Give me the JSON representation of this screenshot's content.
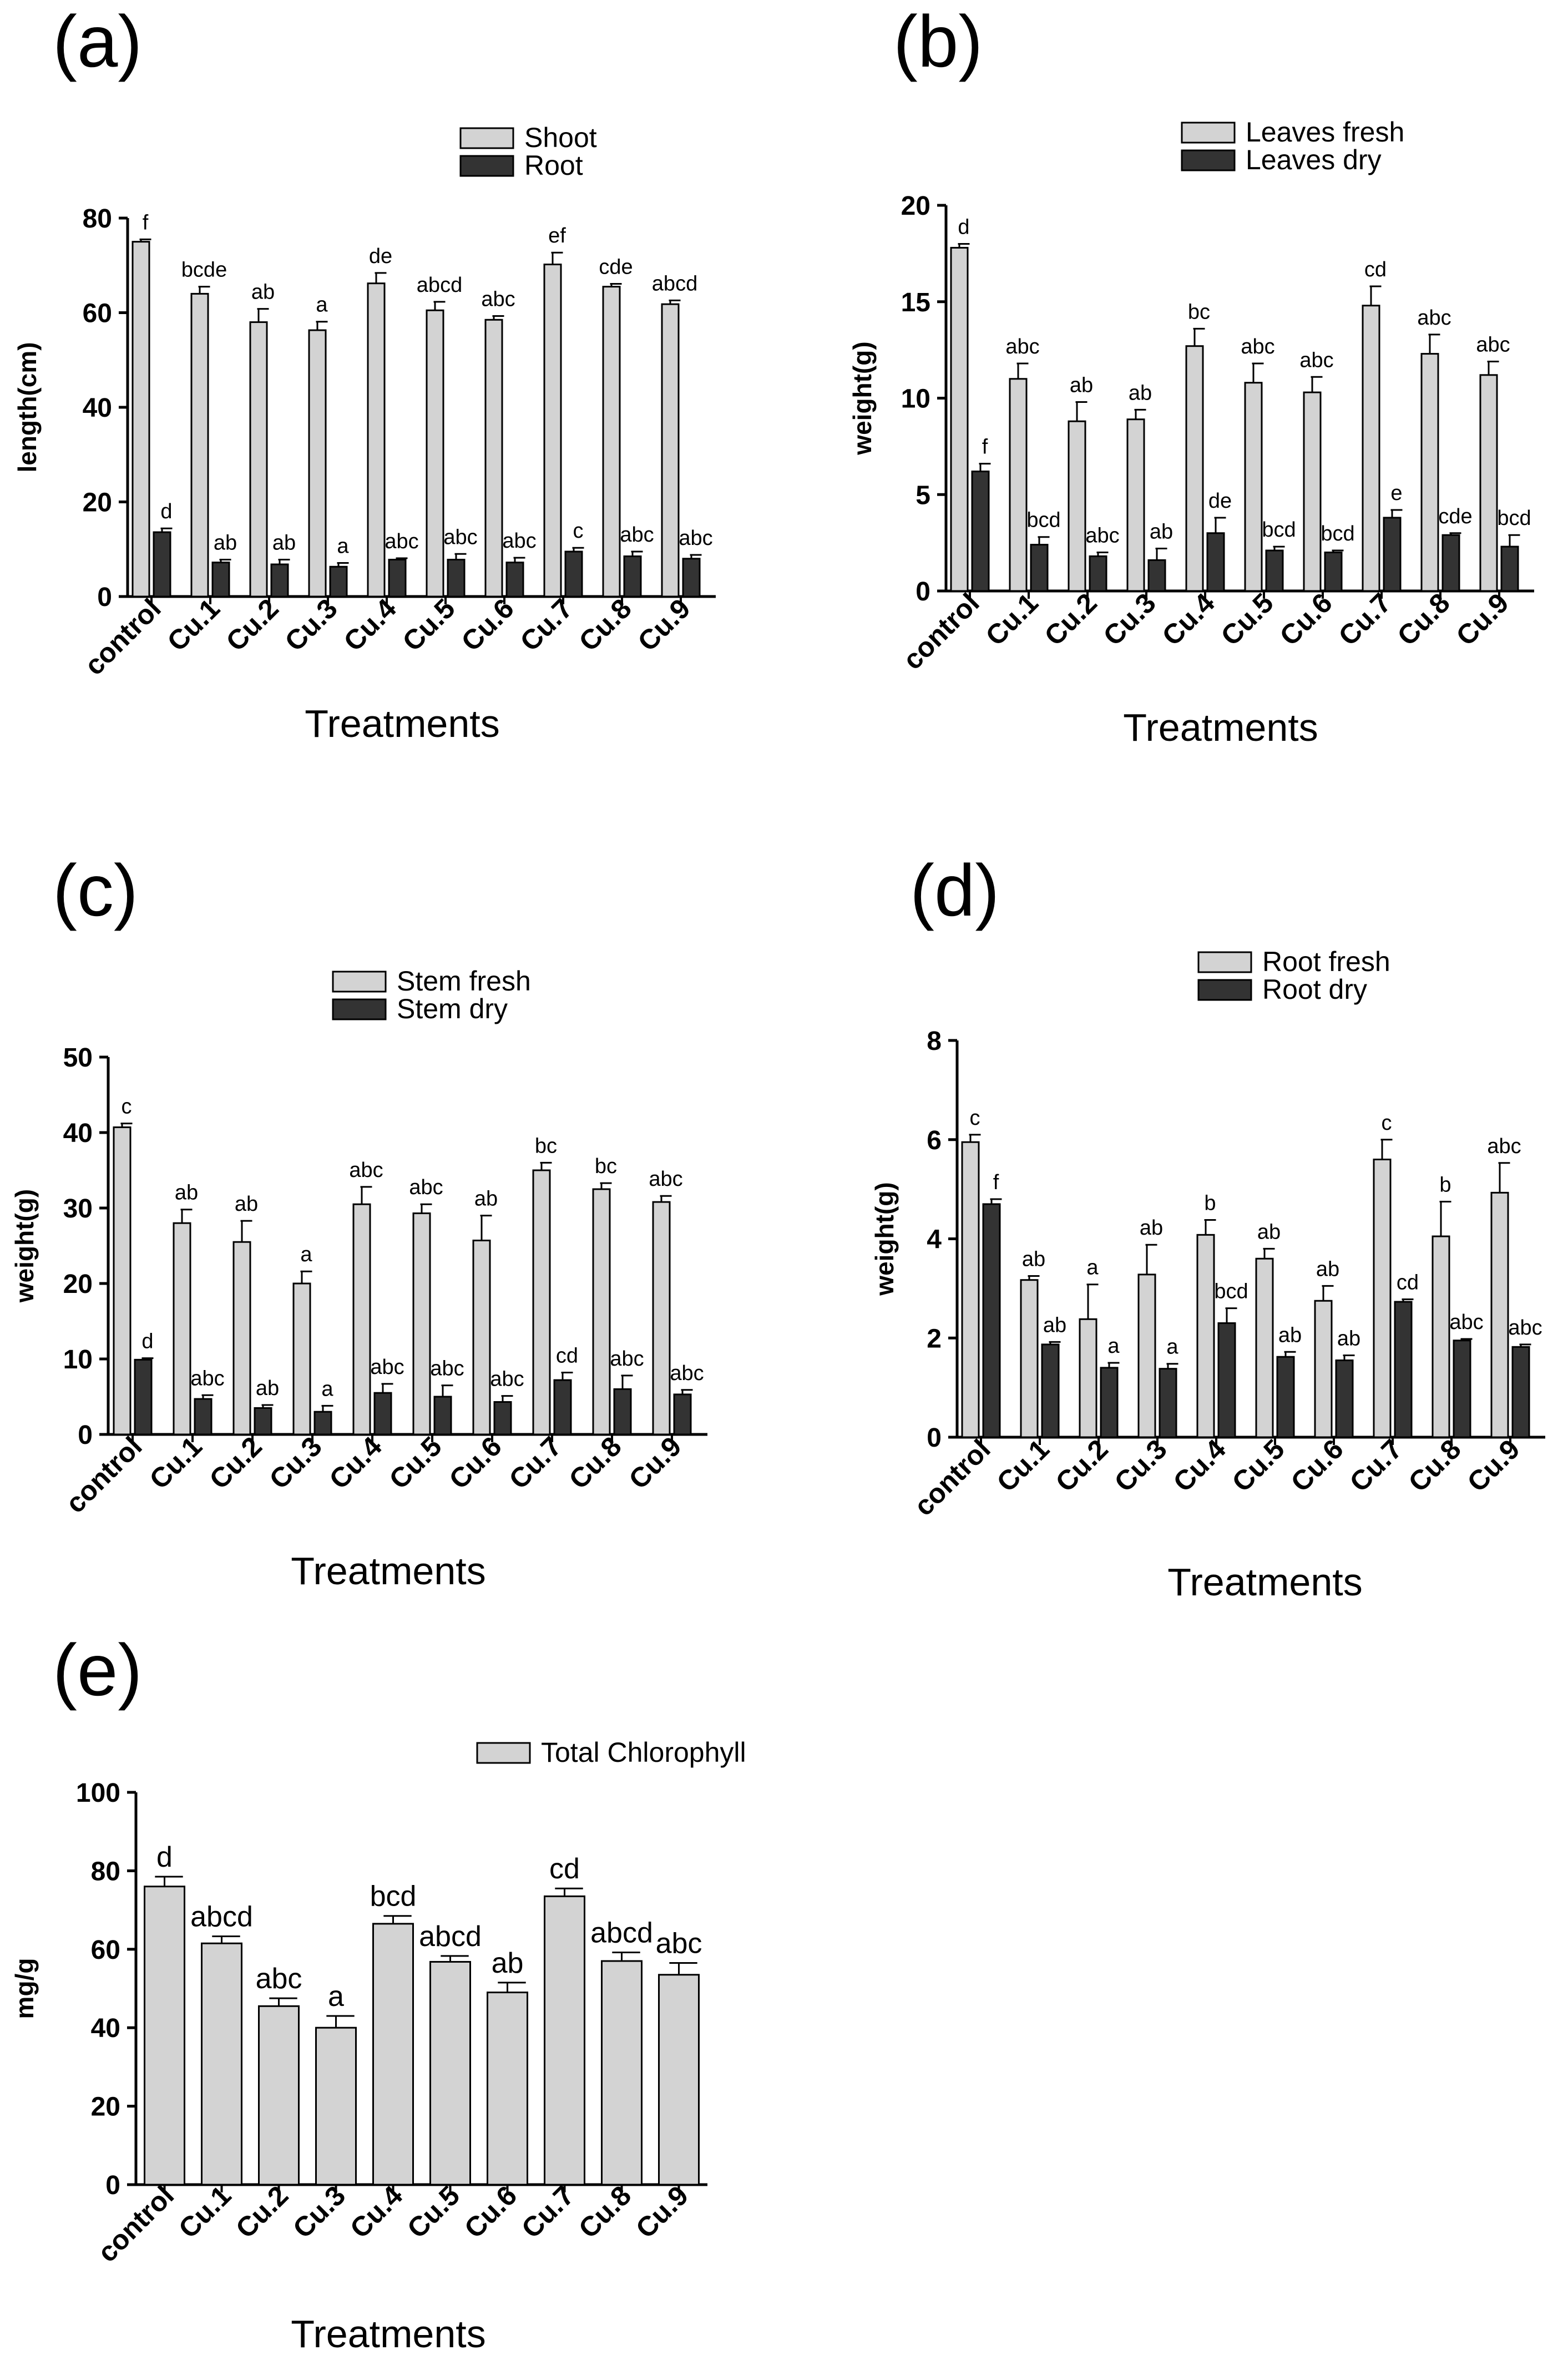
{
  "colors": {
    "light": "#d3d3d3",
    "dark": "#333333",
    "stroke": "#000000"
  },
  "chart_data": [
    {
      "panel": "(a)",
      "type": "bar",
      "categories": [
        "control",
        "Cu.1",
        "Cu.2",
        "Cu.3",
        "Cu.4",
        "Cu.5",
        "Cu.6",
        "Cu.7",
        "Cu.8",
        "Cu.9"
      ],
      "ylabel": "length(cm)",
      "xlabel": "Treatments",
      "ylim": [
        0,
        80
      ],
      "yticks": [
        0,
        20,
        40,
        60,
        80
      ],
      "series": [
        {
          "name": "Shoot",
          "color": "light",
          "values": [
            75,
            64,
            58,
            56.3,
            66.2,
            60.5,
            58.5,
            70.2,
            65.5,
            61.8
          ],
          "errors": [
            0.5,
            1.5,
            2.8,
            1.8,
            2.2,
            1.8,
            0.8,
            2.5,
            0.6,
            0.8
          ],
          "letters": [
            "f",
            "bcde",
            "ab",
            "a",
            "de",
            "abcd",
            "abc",
            "ef",
            "cde",
            "abcd"
          ]
        },
        {
          "name": "Root",
          "color": "dark",
          "values": [
            13.6,
            7.2,
            6.8,
            6.3,
            7.8,
            7.8,
            7.2,
            9.5,
            8.5,
            8.0
          ],
          "errors": [
            0.8,
            0.6,
            1.0,
            0.8,
            0.3,
            1.2,
            1.0,
            0.8,
            1.0,
            0.8
          ],
          "letters": [
            "d",
            "ab",
            "ab",
            "a",
            "abc",
            "abc",
            "abc",
            "c",
            "abc",
            "abc"
          ]
        }
      ]
    },
    {
      "panel": "(b)",
      "type": "bar",
      "categories": [
        "control",
        "Cu.1",
        "Cu.2",
        "Cu.3",
        "Cu.4",
        "Cu.5",
        "Cu.6",
        "Cu.7",
        "Cu.8",
        "Cu.9"
      ],
      "ylabel": "weight(g)",
      "xlabel": "Treatments",
      "ylim": [
        0,
        20
      ],
      "yticks": [
        0,
        5,
        10,
        15,
        20
      ],
      "series": [
        {
          "name": "Leaves fresh",
          "color": "light",
          "values": [
            17.8,
            11.0,
            8.8,
            8.9,
            12.7,
            10.8,
            10.3,
            14.8,
            12.3,
            11.2
          ],
          "errors": [
            0.2,
            0.8,
            1.0,
            0.5,
            0.9,
            1.0,
            0.8,
            1.0,
            1.0,
            0.7
          ],
          "letters": [
            "d",
            "abc",
            "ab",
            "ab",
            "bc",
            "abc",
            "abc",
            "cd",
            "abc",
            "abc"
          ]
        },
        {
          "name": "Leaves dry",
          "color": "dark",
          "values": [
            6.2,
            2.4,
            1.8,
            1.6,
            3.0,
            2.1,
            2.0,
            3.8,
            2.9,
            2.3
          ],
          "errors": [
            0.4,
            0.4,
            0.2,
            0.6,
            0.8,
            0.2,
            0.1,
            0.4,
            0.1,
            0.6
          ],
          "letters": [
            "f",
            "bcd",
            "abc",
            "ab",
            "de",
            "bcd",
            "bcd",
            "e",
            "cde",
            "bcd"
          ]
        }
      ]
    },
    {
      "panel": "(c)",
      "type": "bar",
      "categories": [
        "control",
        "Cu.1",
        "Cu.2",
        "Cu.3",
        "Cu.4",
        "Cu.5",
        "Cu.6",
        "Cu.7",
        "Cu.8",
        "Cu.9"
      ],
      "ylabel": "weight(g)",
      "xlabel": "Treatments",
      "ylim": [
        0,
        50
      ],
      "yticks": [
        0,
        10,
        20,
        30,
        40,
        50
      ],
      "series": [
        {
          "name": "Stem fresh",
          "color": "light",
          "values": [
            40.7,
            28.0,
            25.5,
            20.0,
            30.5,
            29.3,
            25.7,
            35.0,
            32.5,
            30.8
          ],
          "errors": [
            0.5,
            1.8,
            2.8,
            1.6,
            2.3,
            1.2,
            3.3,
            1.0,
            0.8,
            0.8
          ],
          "letters": [
            "c",
            "ab",
            "ab",
            "a",
            "abc",
            "abc",
            "ab",
            "bc",
            "bc",
            "abc"
          ]
        },
        {
          "name": "Stem dry",
          "color": "dark",
          "values": [
            9.9,
            4.7,
            3.5,
            3.0,
            5.5,
            5.0,
            4.3,
            7.2,
            6.0,
            5.3
          ],
          "errors": [
            0.2,
            0.5,
            0.4,
            0.8,
            1.2,
            1.5,
            0.8,
            1.0,
            1.8,
            0.6
          ],
          "letters": [
            "d",
            "abc",
            "ab",
            "a",
            "abc",
            "abc",
            "abc",
            "cd",
            "abc",
            "abc"
          ]
        }
      ]
    },
    {
      "panel": "(d)",
      "type": "bar",
      "categories": [
        "control",
        "Cu.1",
        "Cu.2",
        "Cu.3",
        "Cu.4",
        "Cu.5",
        "Cu.6",
        "Cu.7",
        "Cu.8",
        "Cu.9"
      ],
      "ylabel": "weight(g)",
      "xlabel": "Treatments",
      "ylim": [
        0,
        8
      ],
      "yticks": [
        0,
        2,
        4,
        6,
        8
      ],
      "series": [
        {
          "name": "Root fresh",
          "color": "light",
          "values": [
            5.95,
            3.17,
            2.38,
            3.28,
            4.08,
            3.6,
            2.75,
            5.6,
            4.05,
            4.93
          ],
          "errors": [
            0.15,
            0.08,
            0.7,
            0.6,
            0.3,
            0.2,
            0.3,
            0.4,
            0.7,
            0.6
          ],
          "letters": [
            "c",
            "ab",
            "a",
            "ab",
            "b",
            "ab",
            "ab",
            "c",
            "b",
            "abc"
          ]
        },
        {
          "name": "Root dry",
          "color": "dark",
          "values": [
            4.7,
            1.87,
            1.4,
            1.38,
            2.3,
            1.62,
            1.55,
            2.73,
            1.95,
            1.82
          ],
          "errors": [
            0.1,
            0.05,
            0.1,
            0.1,
            0.3,
            0.1,
            0.1,
            0.05,
            0.03,
            0.05
          ],
          "letters": [
            "f",
            "ab",
            "a",
            "a",
            "bcd",
            "ab",
            "ab",
            "cd",
            "abc",
            "abc"
          ]
        }
      ]
    },
    {
      "panel": "(e)",
      "type": "bar",
      "categories": [
        "control",
        "Cu.1",
        "Cu.2",
        "Cu.3",
        "Cu.4",
        "Cu.5",
        "Cu.6",
        "Cu.7",
        "Cu.8",
        "Cu.9"
      ],
      "ylabel": "mg/g",
      "xlabel": "Treatments",
      "ylim": [
        0,
        100
      ],
      "yticks": [
        0,
        20,
        40,
        60,
        80,
        100
      ],
      "series": [
        {
          "name": "Total Chlorophyll",
          "color": "light",
          "values": [
            76,
            61.5,
            45.5,
            40,
            66.5,
            56.8,
            49,
            73.5,
            57,
            53.5
          ],
          "errors": [
            2.5,
            1.8,
            2.0,
            3.0,
            2.0,
            1.5,
            2.5,
            2.0,
            2.2,
            3.0
          ],
          "letters": [
            "d",
            "abcd",
            "abc",
            "a",
            "bcd",
            "abcd",
            "ab",
            "cd",
            "abcd",
            "abc"
          ]
        }
      ]
    }
  ]
}
